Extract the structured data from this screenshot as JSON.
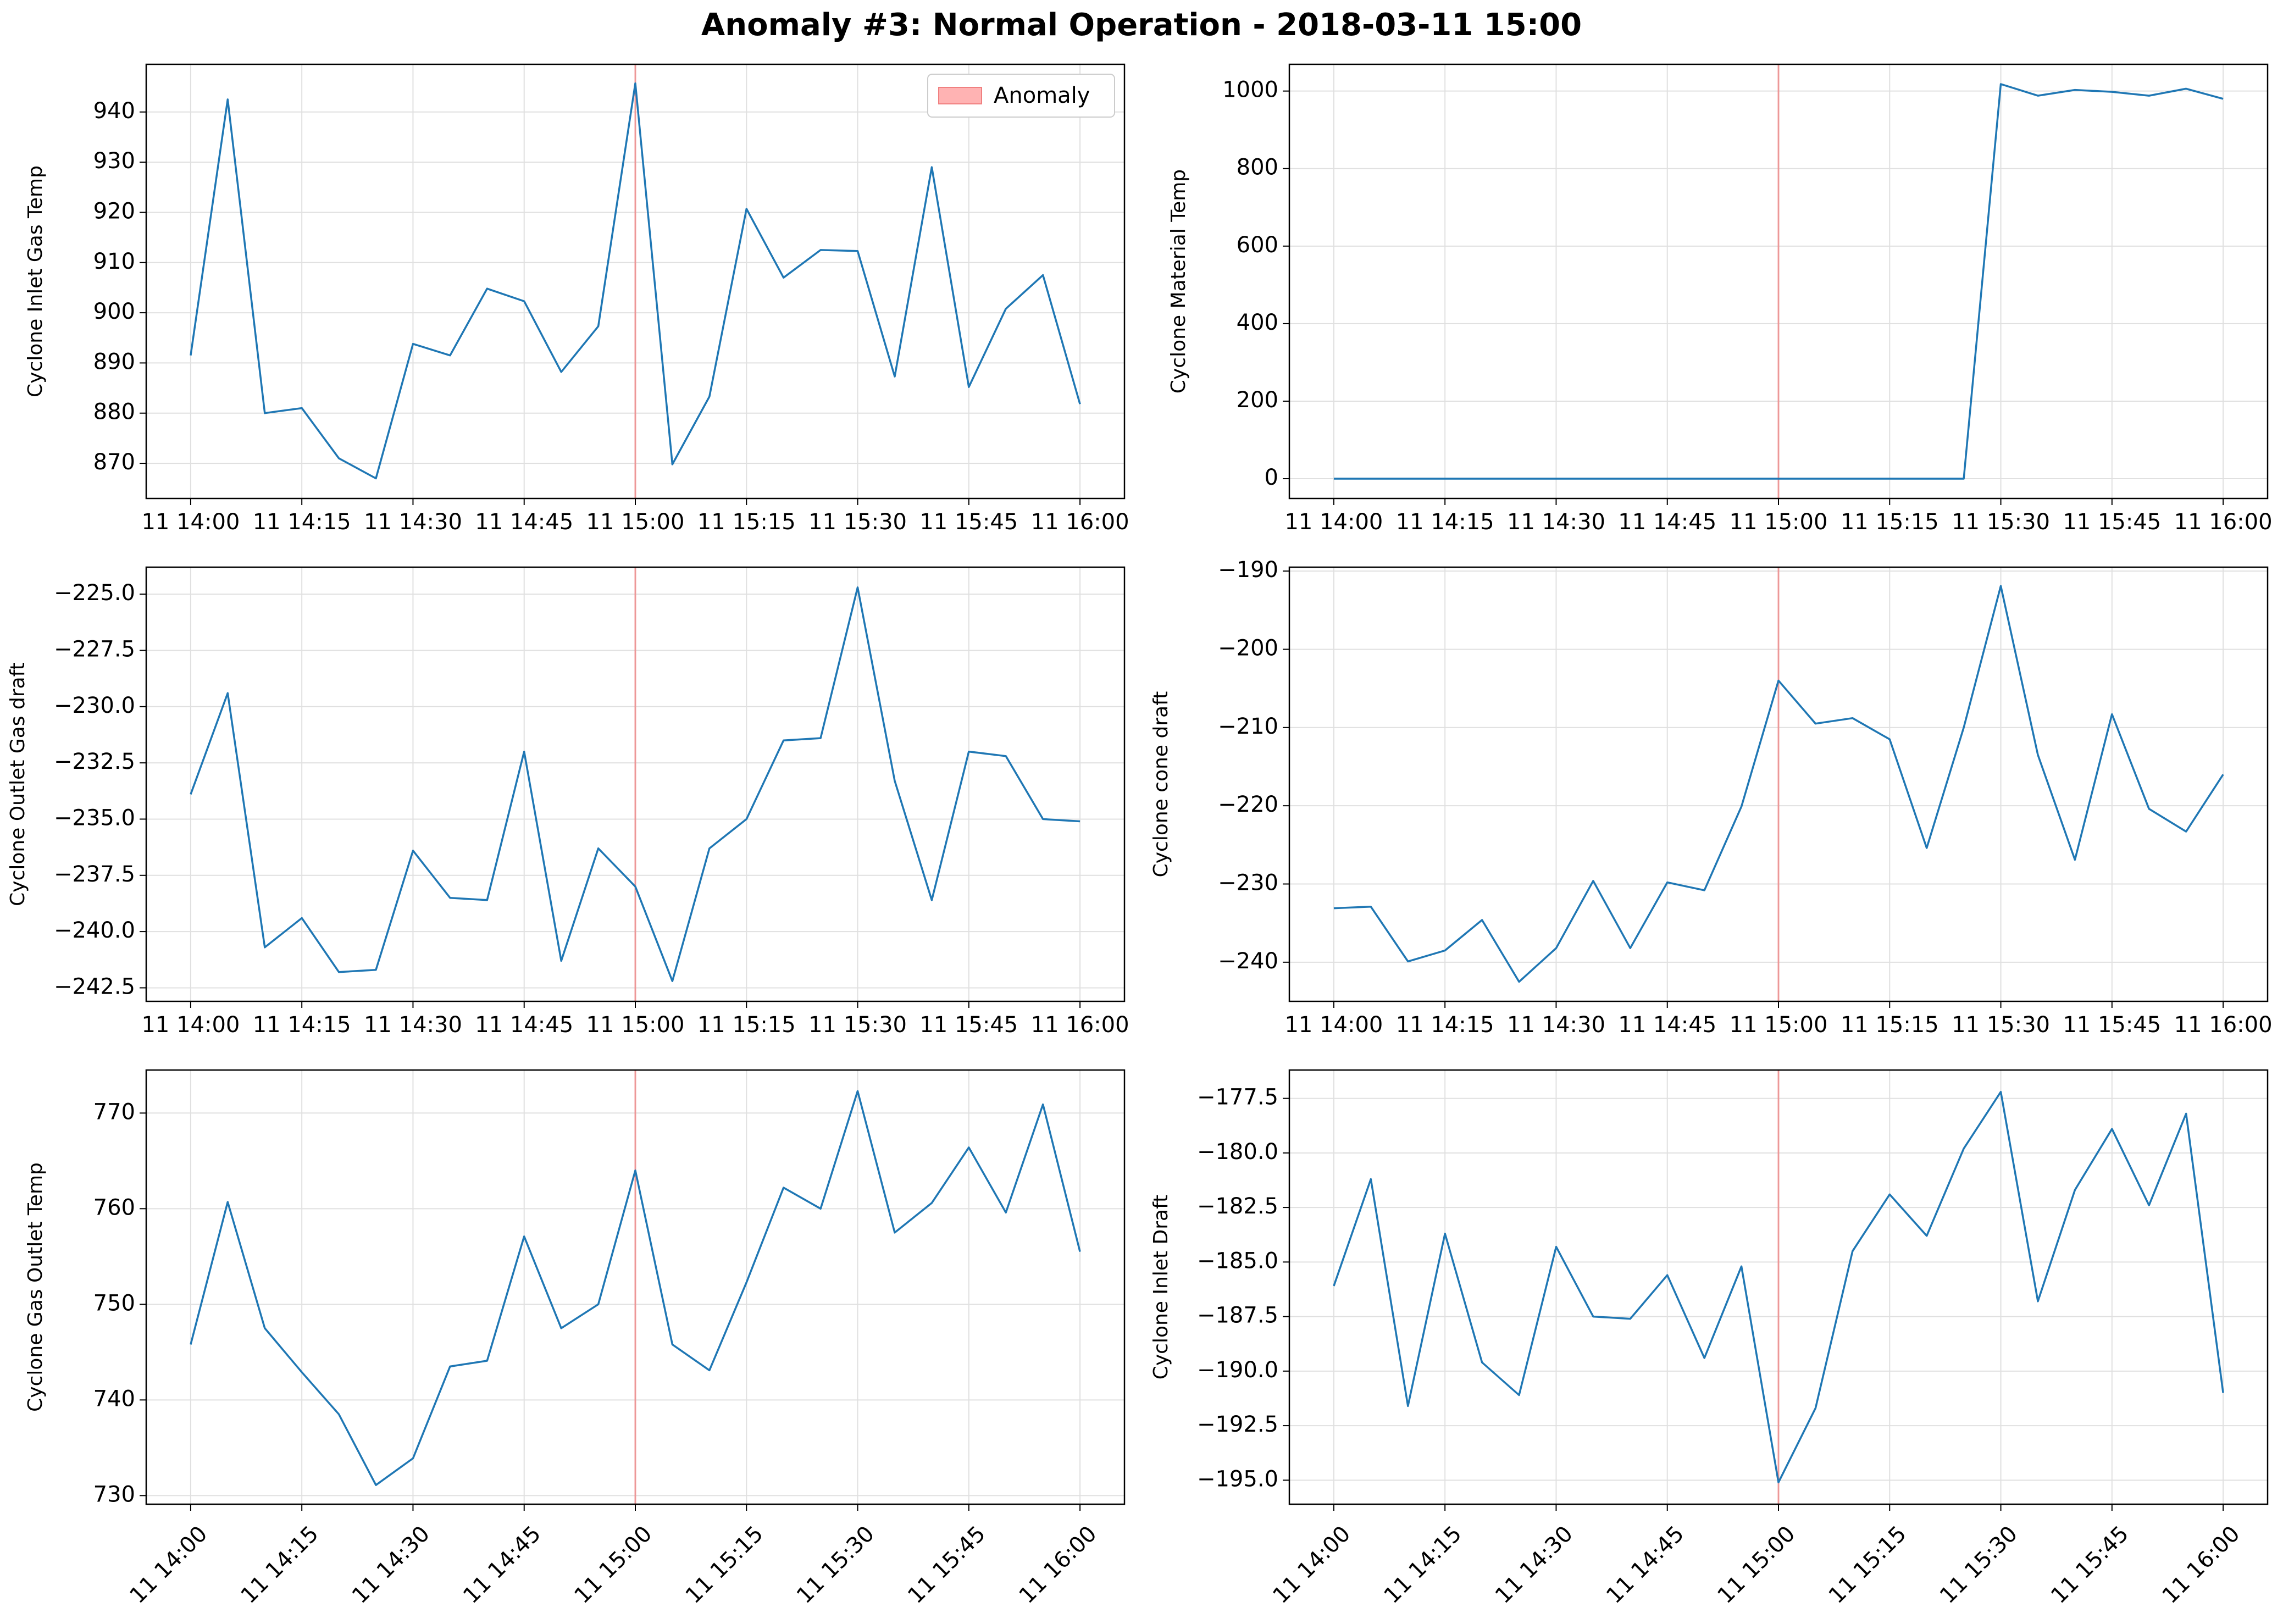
{
  "title": "Anomaly #3: Normal Operation - 2018-03-11 15:00",
  "legend_label": "Anomaly",
  "colors": {
    "line": "#1f77b4",
    "anomaly": "#f08080",
    "anomaly_fill": "#ffb3b3",
    "grid": "#e0e0e0"
  },
  "chart_data": [
    {
      "type": "line",
      "ylabel": "Cyclone Inlet Gas Temp",
      "legend": "top-right",
      "grid": true,
      "x": [
        "14:00",
        "14:05",
        "14:10",
        "14:15",
        "14:20",
        "14:25",
        "14:30",
        "14:35",
        "14:40",
        "14:45",
        "14:50",
        "14:55",
        "15:00",
        "15:05",
        "15:10",
        "15:15",
        "15:20",
        "15:25",
        "15:30",
        "15:35",
        "15:40",
        "15:45",
        "15:50",
        "15:55",
        "16:00"
      ],
      "values": [
        891.5,
        942.5,
        880,
        881,
        871,
        867,
        893.8,
        891.5,
        904.8,
        902.3,
        888.2,
        897.3,
        945.7,
        869.8,
        883.3,
        920.7,
        907,
        912.5,
        912.3,
        887.3,
        929,
        885.2,
        900.8,
        907.5,
        881.8
      ],
      "ylim": [
        863,
        949.5
      ],
      "yticks": [
        870,
        880,
        890,
        900,
        910,
        920,
        930,
        940
      ],
      "xticks": [
        "11 14:00",
        "11 14:15",
        "11 14:30",
        "11 14:45",
        "11 15:00",
        "11 15:15",
        "11 15:30",
        "11 15:45",
        "11 16:00"
      ],
      "xticks_rotated": false,
      "anomaly_x": "15:00"
    },
    {
      "type": "line",
      "ylabel": "Cyclone Material Temp",
      "grid": true,
      "x": [
        "14:00",
        "14:05",
        "14:10",
        "14:15",
        "14:20",
        "14:25",
        "14:30",
        "14:35",
        "14:40",
        "14:45",
        "14:50",
        "14:55",
        "15:00",
        "15:05",
        "15:10",
        "15:15",
        "15:20",
        "15:25",
        "15:30",
        "15:35",
        "15:40",
        "15:45",
        "15:50",
        "15:55",
        "16:00"
      ],
      "values": [
        0,
        0,
        0,
        0,
        0,
        0,
        0,
        0,
        0,
        0,
        0,
        0,
        0,
        0,
        0,
        0,
        0,
        0,
        1018,
        988,
        1003,
        998,
        988,
        1006,
        980
      ],
      "ylim": [
        -51,
        1069
      ],
      "yticks": [
        0,
        200,
        400,
        600,
        800,
        1000
      ],
      "xticks": [
        "11 14:00",
        "11 14:15",
        "11 14:30",
        "11 14:45",
        "11 15:00",
        "11 15:15",
        "11 15:30",
        "11 15:45",
        "11 16:00"
      ],
      "xticks_rotated": false,
      "anomaly_x": "15:00"
    },
    {
      "type": "line",
      "ylabel": "Cyclone Outlet Gas draft",
      "grid": true,
      "x": [
        "14:00",
        "14:05",
        "14:10",
        "14:15",
        "14:20",
        "14:25",
        "14:30",
        "14:35",
        "14:40",
        "14:45",
        "14:50",
        "14:55",
        "15:00",
        "15:05",
        "15:10",
        "15:15",
        "15:20",
        "15:25",
        "15:30",
        "15:35",
        "15:40",
        "15:45",
        "15:50",
        "15:55",
        "16:00"
      ],
      "values": [
        -233.9,
        -229.4,
        -240.7,
        -239.4,
        -241.8,
        -241.7,
        -236.4,
        -238.5,
        -238.6,
        -232,
        -241.3,
        -236.3,
        -238,
        -242.2,
        -236.3,
        -235,
        -231.5,
        -231.4,
        -224.7,
        -233.3,
        -238.6,
        -232,
        -232.2,
        -235,
        -235.1
      ],
      "ylim": [
        -243.1,
        -223.8
      ],
      "yticks": [
        -242.5,
        -240,
        -237.5,
        -235,
        -232.5,
        -230,
        -227.5,
        -225
      ],
      "ytick_labels": [
        "−242.5",
        "−240.0",
        "−237.5",
        "−235.0",
        "−232.5",
        "−230.0",
        "−227.5",
        "−225.0"
      ],
      "xticks": [
        "11 14:00",
        "11 14:15",
        "11 14:30",
        "11 14:45",
        "11 15:00",
        "11 15:15",
        "11 15:30",
        "11 15:45",
        "11 16:00"
      ],
      "xticks_rotated": false,
      "anomaly_x": "15:00"
    },
    {
      "type": "line",
      "ylabel": "Cyclone cone draft",
      "grid": true,
      "x": [
        "14:00",
        "14:05",
        "14:10",
        "14:15",
        "14:20",
        "14:25",
        "14:30",
        "14:35",
        "14:40",
        "14:45",
        "14:50",
        "14:55",
        "15:00",
        "15:05",
        "15:10",
        "15:15",
        "15:20",
        "15:25",
        "15:30",
        "15:35",
        "15:40",
        "15:45",
        "15:50",
        "15:55",
        "16:00"
      ],
      "values": [
        -233.1,
        -232.9,
        -239.9,
        -238.5,
        -234.6,
        -242.5,
        -238.2,
        -229.6,
        -238.2,
        -229.8,
        -230.8,
        -220.1,
        -204,
        -209.5,
        -208.8,
        -211.5,
        -225.4,
        -210,
        -191.9,
        -213.5,
        -226.9,
        -208.3,
        -220.4,
        -223.3,
        -216
      ],
      "ylim": [
        -245,
        -189.5
      ],
      "yticks": [
        -240,
        -230,
        -220,
        -210,
        -200,
        -190
      ],
      "ytick_labels": [
        "−240",
        "−230",
        "−220",
        "−210",
        "−200",
        "−190"
      ],
      "xticks": [
        "11 14:00",
        "11 14:15",
        "11 14:30",
        "11 14:45",
        "11 15:00",
        "11 15:15",
        "11 15:30",
        "11 15:45",
        "11 16:00"
      ],
      "xticks_rotated": false,
      "anomaly_x": "15:00"
    },
    {
      "type": "line",
      "ylabel": "Cyclone Gas Outlet Temp",
      "grid": true,
      "x": [
        "14:00",
        "14:05",
        "14:10",
        "14:15",
        "14:20",
        "14:25",
        "14:30",
        "14:35",
        "14:40",
        "14:45",
        "14:50",
        "14:55",
        "15:00",
        "15:05",
        "15:10",
        "15:15",
        "15:20",
        "15:25",
        "15:30",
        "15:35",
        "15:40",
        "15:45",
        "15:50",
        "15:55",
        "16:00"
      ],
      "values": [
        745.8,
        760.7,
        747.5,
        742.9,
        738.5,
        731.1,
        733.9,
        743.5,
        744.1,
        757.1,
        747.5,
        750,
        764,
        745.8,
        743.1,
        752.3,
        762.2,
        760,
        772.3,
        757.5,
        760.6,
        766.4,
        759.6,
        770.9,
        755.5
      ],
      "ylim": [
        729.1,
        774.5
      ],
      "yticks": [
        730,
        740,
        750,
        760,
        770
      ],
      "xticks": [
        "11 14:00",
        "11 14:15",
        "11 14:30",
        "11 14:45",
        "11 15:00",
        "11 15:15",
        "11 15:30",
        "11 15:45",
        "11 16:00"
      ],
      "xticks_rotated": true,
      "anomaly_x": "15:00"
    },
    {
      "type": "line",
      "ylabel": "Cyclone Inlet Draft",
      "grid": true,
      "x": [
        "14:00",
        "14:05",
        "14:10",
        "14:15",
        "14:20",
        "14:25",
        "14:30",
        "14:35",
        "14:40",
        "14:45",
        "14:50",
        "14:55",
        "15:00",
        "15:05",
        "15:10",
        "15:15",
        "15:20",
        "15:25",
        "15:30",
        "15:35",
        "15:40",
        "15:45",
        "15:50",
        "15:55",
        "16:00"
      ],
      "values": [
        -186.1,
        -181.2,
        -191.6,
        -183.7,
        -189.6,
        -191.1,
        -184.3,
        -187.5,
        -187.6,
        -185.6,
        -189.4,
        -185.2,
        -195.1,
        -191.7,
        -184.5,
        -181.9,
        -183.8,
        -179.8,
        -177.2,
        -186.8,
        -181.7,
        -178.9,
        -182.4,
        -178.2,
        -191
      ],
      "ylim": [
        -196.1,
        -176.2
      ],
      "yticks": [
        -195,
        -192.5,
        -190,
        -187.5,
        -185,
        -182.5,
        -180,
        -177.5
      ],
      "ytick_labels": [
        "−195.0",
        "−192.5",
        "−190.0",
        "−187.5",
        "−185.0",
        "−182.5",
        "−180.0",
        "−177.5"
      ],
      "xticks": [
        "11 14:00",
        "11 14:15",
        "11 14:30",
        "11 14:45",
        "11 15:00",
        "11 15:15",
        "11 15:30",
        "11 15:45",
        "11 16:00"
      ],
      "xticks_rotated": true,
      "anomaly_x": "15:00"
    }
  ]
}
